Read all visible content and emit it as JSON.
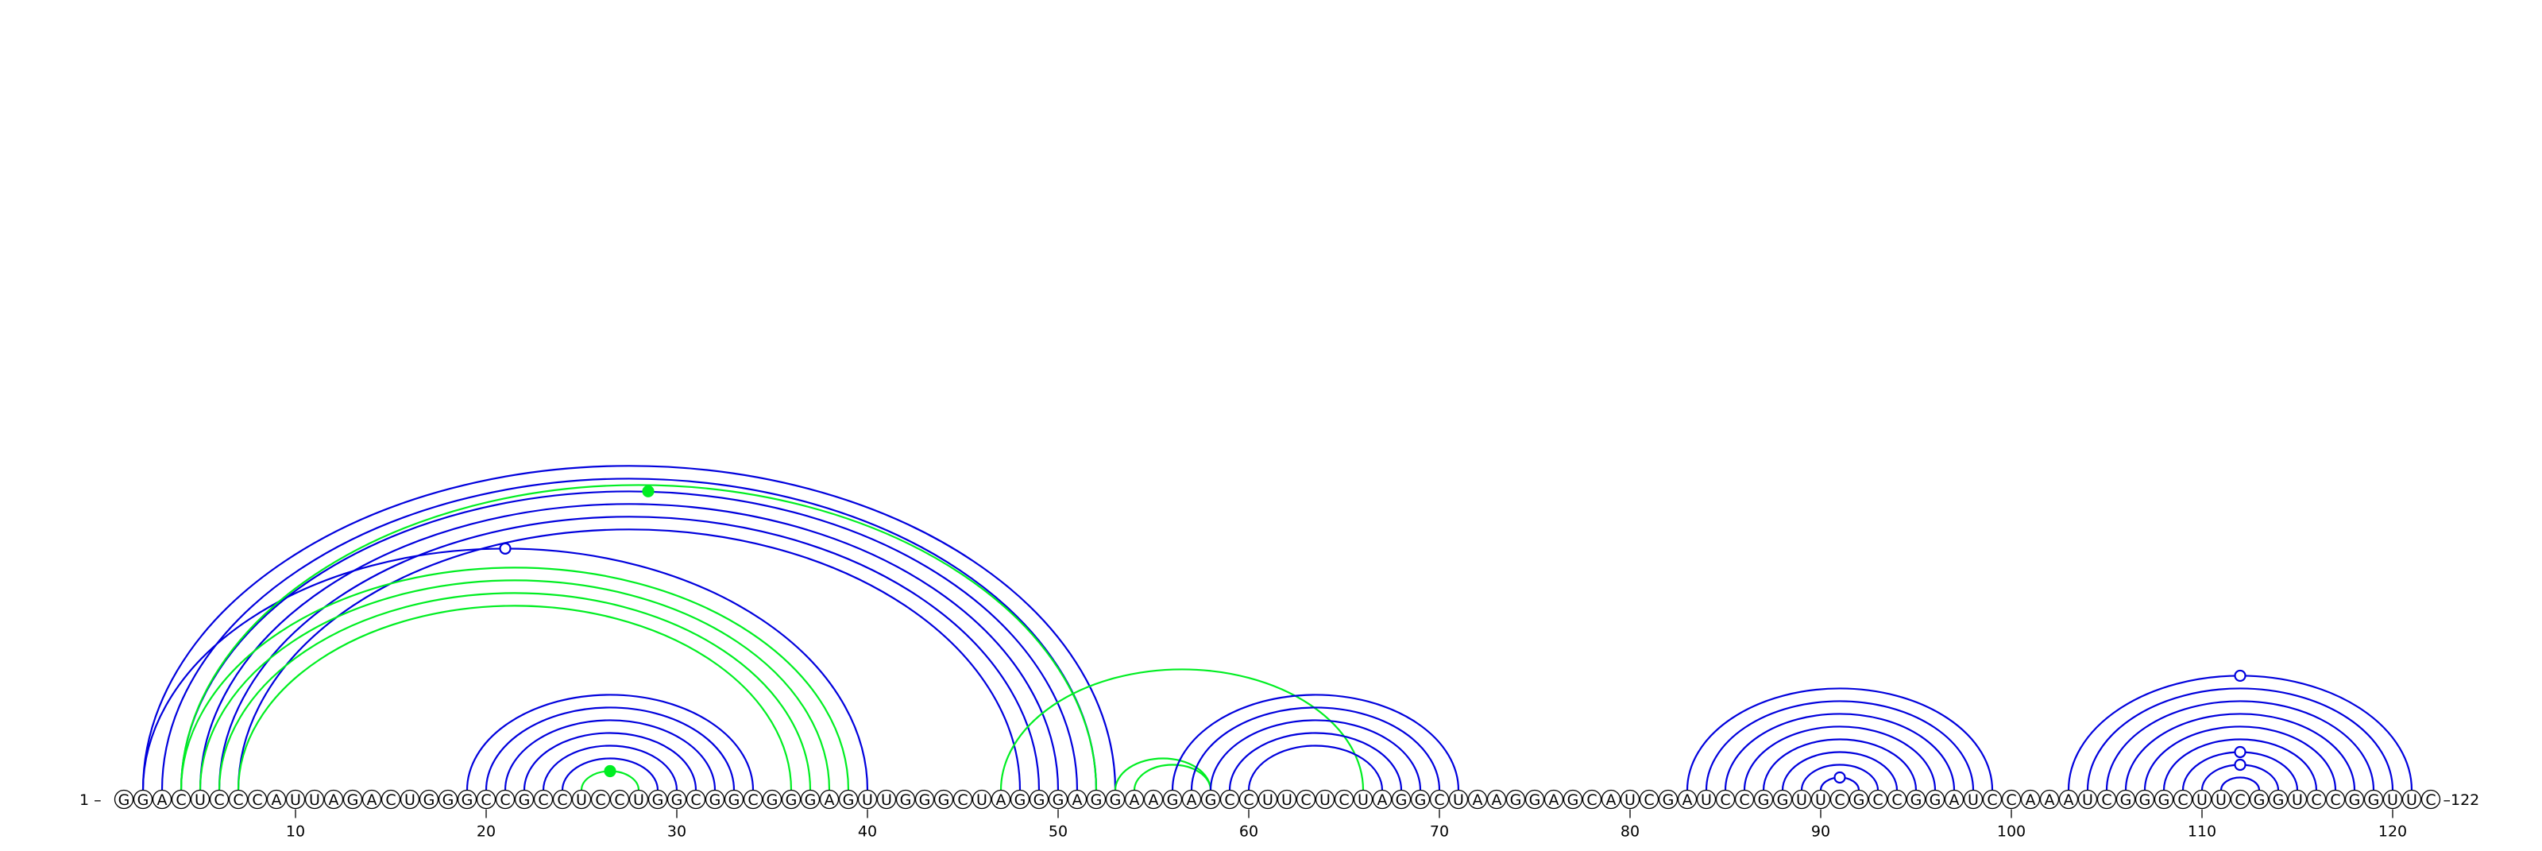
{
  "sequence": "GGACUCCCAUUAGACUGGGCCGCCUCCUGGCGGCGGGAGUUGGGCUAGGGAGGAAGAGCCUUCUCUAGGCUAAGGAGCAUCGAUCCGGUUCGCCGGAUCCAAAUCGGGCUUCGGUCCGGUUC",
  "start_label": "1 –",
  "end_label": "–122",
  "ticks": [
    {
      "pos": 10,
      "label": "10"
    },
    {
      "pos": 20,
      "label": "20"
    },
    {
      "pos": 30,
      "label": "30"
    },
    {
      "pos": 40,
      "label": "40"
    },
    {
      "pos": 50,
      "label": "50"
    },
    {
      "pos": 60,
      "label": "60"
    },
    {
      "pos": 70,
      "label": "70"
    },
    {
      "pos": 80,
      "label": "80"
    },
    {
      "pos": 90,
      "label": "90"
    },
    {
      "pos": 100,
      "label": "100"
    },
    {
      "pos": 110,
      "label": "110"
    },
    {
      "pos": 120,
      "label": "120"
    }
  ],
  "colors": {
    "blue": "#0000dd",
    "green": "#00ee22"
  },
  "pairs": [
    {
      "i": 2,
      "j": 53,
      "color": "blue"
    },
    {
      "i": 3,
      "j": 52,
      "color": "blue"
    },
    {
      "i": 4,
      "j": 51,
      "color": "blue"
    },
    {
      "i": 5,
      "j": 50,
      "color": "blue"
    },
    {
      "i": 6,
      "j": 49,
      "color": "blue"
    },
    {
      "i": 7,
      "j": 48,
      "color": "blue"
    },
    {
      "i": 2,
      "j": 40,
      "color": "blue"
    },
    {
      "i": 4,
      "j": 39,
      "color": "green"
    },
    {
      "i": 5,
      "j": 38,
      "color": "green"
    },
    {
      "i": 6,
      "j": 37,
      "color": "green"
    },
    {
      "i": 7,
      "j": 36,
      "color": "green"
    },
    {
      "i": 4,
      "j": 52,
      "color": "green"
    },
    {
      "i": 19,
      "j": 34,
      "color": "blue"
    },
    {
      "i": 20,
      "j": 33,
      "color": "blue"
    },
    {
      "i": 21,
      "j": 32,
      "color": "blue"
    },
    {
      "i": 22,
      "j": 31,
      "color": "blue"
    },
    {
      "i": 23,
      "j": 30,
      "color": "blue"
    },
    {
      "i": 24,
      "j": 29,
      "color": "blue"
    },
    {
      "i": 25,
      "j": 28,
      "color": "green"
    },
    {
      "i": 47,
      "j": 66,
      "color": "green"
    },
    {
      "i": 53,
      "j": 58,
      "color": "green"
    },
    {
      "i": 54,
      "j": 58,
      "color": "green"
    },
    {
      "i": 56,
      "j": 71,
      "color": "blue"
    },
    {
      "i": 57,
      "j": 70,
      "color": "blue"
    },
    {
      "i": 58,
      "j": 69,
      "color": "blue"
    },
    {
      "i": 59,
      "j": 68,
      "color": "blue"
    },
    {
      "i": 60,
      "j": 67,
      "color": "blue"
    },
    {
      "i": 83,
      "j": 99,
      "color": "blue"
    },
    {
      "i": 84,
      "j": 98,
      "color": "blue"
    },
    {
      "i": 85,
      "j": 97,
      "color": "blue"
    },
    {
      "i": 86,
      "j": 96,
      "color": "blue"
    },
    {
      "i": 87,
      "j": 95,
      "color": "blue"
    },
    {
      "i": 88,
      "j": 94,
      "color": "blue"
    },
    {
      "i": 89,
      "j": 93,
      "color": "blue"
    },
    {
      "i": 90,
      "j": 92,
      "color": "blue"
    },
    {
      "i": 103,
      "j": 121,
      "color": "blue"
    },
    {
      "i": 104,
      "j": 120,
      "color": "blue"
    },
    {
      "i": 105,
      "j": 119,
      "color": "blue"
    },
    {
      "i": 106,
      "j": 118,
      "color": "blue"
    },
    {
      "i": 107,
      "j": 117,
      "color": "blue"
    },
    {
      "i": 108,
      "j": 116,
      "color": "blue"
    },
    {
      "i": 109,
      "j": 115,
      "color": "blue"
    },
    {
      "i": 110,
      "j": 114,
      "color": "blue"
    },
    {
      "i": 111,
      "j": 113,
      "color": "blue"
    }
  ],
  "markers": [
    {
      "i": 5,
      "j": 52,
      "style": "filled",
      "color": "green"
    },
    {
      "i": 2,
      "j": 40,
      "style": "open",
      "color": "blue"
    },
    {
      "i": 25,
      "j": 28,
      "style": "filled",
      "color": "green"
    },
    {
      "i": 90,
      "j": 92,
      "style": "open",
      "color": "blue"
    },
    {
      "i": 103,
      "j": 121,
      "style": "open",
      "color": "blue"
    },
    {
      "i": 109,
      "j": 115,
      "style": "open",
      "color": "blue"
    },
    {
      "i": 110,
      "j": 114,
      "style": "open",
      "color": "blue"
    }
  ]
}
